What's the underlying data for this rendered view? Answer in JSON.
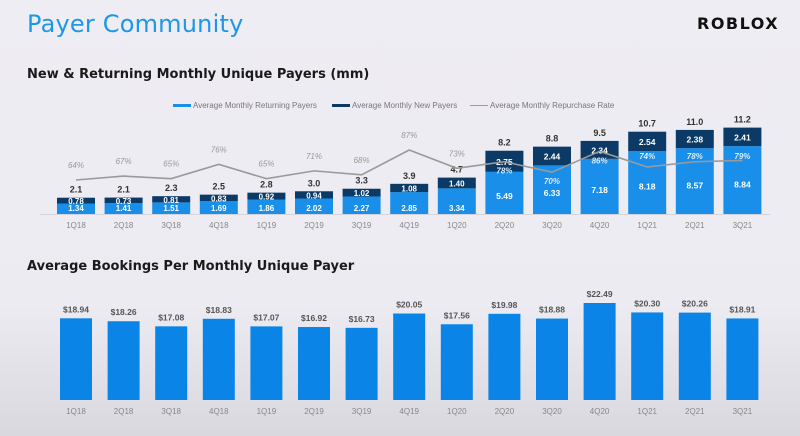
{
  "page": {
    "title": "Payer Community",
    "logo": "ROBLOX"
  },
  "colors": {
    "title": "#1d97e6",
    "returning": "#1a8fea",
    "new": "#0b3a66",
    "repurchase_line": "#9a9a9a",
    "bookings_bar": "#0a84e6"
  },
  "chart_data": [
    {
      "type": "bar",
      "stacked": true,
      "title": "New & Returning Monthly Unique Payers (mm)",
      "xlabel": "",
      "ylabel": "",
      "grid": false,
      "legend_position": "top",
      "categories": [
        "1Q18",
        "2Q18",
        "3Q18",
        "4Q18",
        "1Q19",
        "2Q19",
        "3Q19",
        "4Q19",
        "1Q20",
        "2Q20",
        "3Q20",
        "4Q20",
        "1Q21",
        "2Q21",
        "3Q21"
      ],
      "series": [
        {
          "name": "Average Monthly Returning Payers",
          "type": "bar",
          "values": [
            1.34,
            1.41,
            1.51,
            1.69,
            1.86,
            2.02,
            2.27,
            2.85,
            3.34,
            5.49,
            6.33,
            7.18,
            8.18,
            8.57,
            8.84
          ]
        },
        {
          "name": "Average Monthly New Payers",
          "type": "bar",
          "values": [
            0.78,
            0.73,
            0.81,
            0.83,
            0.92,
            0.94,
            1.02,
            1.08,
            1.4,
            2.75,
            2.44,
            2.34,
            2.54,
            2.38,
            2.41
          ]
        },
        {
          "name": "Average Monthly Repurchase Rate",
          "type": "line",
          "values": [
            64,
            67,
            65,
            76,
            65,
            71,
            68,
            87,
            73,
            78,
            70,
            86,
            74,
            78,
            79
          ],
          "unit": "%"
        }
      ],
      "totals": [
        "2.1",
        "2.1",
        "2.3",
        "2.5",
        "2.8",
        "3.0",
        "3.3",
        "3.9",
        "4.7",
        "8.2",
        "8.8",
        "9.5",
        "10.7",
        "11.0",
        "11.2"
      ],
      "repurchase_labels": [
        "64%",
        "67%",
        "65%",
        "76%",
        "65%",
        "71%",
        "68%",
        "87%",
        "73%",
        "78%",
        "70%",
        "86%",
        "74%",
        "78%",
        "79%"
      ],
      "ylim": [
        0,
        12
      ]
    },
    {
      "type": "bar",
      "title": "Average Bookings Per Monthly Unique Payer",
      "xlabel": "",
      "ylabel": "",
      "grid": false,
      "categories": [
        "1Q18",
        "2Q18",
        "3Q18",
        "4Q18",
        "1Q19",
        "2Q19",
        "3Q19",
        "4Q19",
        "1Q20",
        "2Q20",
        "3Q20",
        "4Q20",
        "1Q21",
        "2Q21",
        "3Q21"
      ],
      "values": [
        18.94,
        18.26,
        17.08,
        18.83,
        17.07,
        16.92,
        16.73,
        20.05,
        17.56,
        19.98,
        18.88,
        22.49,
        20.3,
        20.26,
        18.91
      ],
      "labels": [
        "$18.94",
        "$18.26",
        "$17.08",
        "$18.83",
        "$17.07",
        "$16.92",
        "$16.73",
        "$20.05",
        "$17.56",
        "$19.98",
        "$18.88",
        "$22.49",
        "$20.30",
        "$20.26",
        "$18.91"
      ],
      "ylim": [
        0,
        23
      ]
    }
  ]
}
